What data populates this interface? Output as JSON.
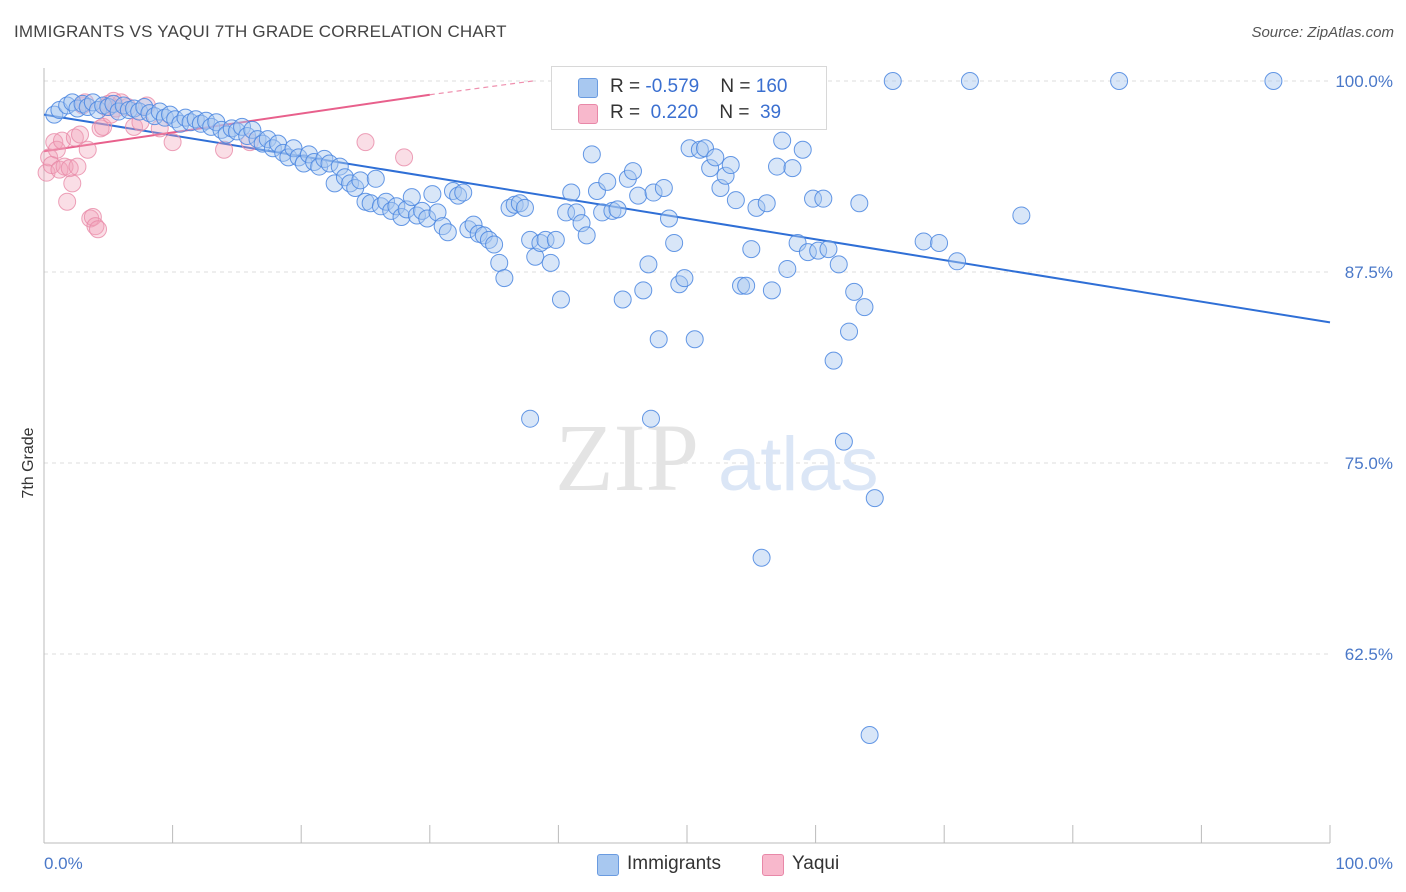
{
  "title": "IMMIGRANTS VS YAQUI 7TH GRADE CORRELATION CHART",
  "source": "Source: ZipAtlas.com",
  "watermark": {
    "zip": "ZIP",
    "atlas": "atlas"
  },
  "legend": {
    "rows": [
      {
        "r_label": "R = ",
        "r_value": "-0.579",
        "n_label": "N = ",
        "n_value": "160",
        "color": "#a8c8f0",
        "border": "#6a9be0"
      },
      {
        "r_label": "R = ",
        "r_value": " 0.220",
        "n_label": "N = ",
        "n_value": " 39",
        "color": "#f8b8cc",
        "border": "#e888a8"
      }
    ]
  },
  "bottom_legend": [
    {
      "label": "Immigrants",
      "color": "#a8c8f0",
      "border": "#6a9be0"
    },
    {
      "label": "Yaqui",
      "color": "#f8b8cc",
      "border": "#e888a8"
    }
  ],
  "chart_data": {
    "type": "scatter",
    "title": "IMMIGRANTS VS YAQUI 7TH GRADE CORRELATION CHART",
    "xlabel": "",
    "ylabel": "7th Grade",
    "xlim": [
      0,
      100
    ],
    "ylim": [
      50,
      100
    ],
    "x_tick_labels": [
      "0.0%",
      "100.0%"
    ],
    "y_ticks": [
      62.5,
      75.0,
      87.5,
      100.0
    ],
    "y_tick_labels": [
      "62.5%",
      "75.0%",
      "87.5%",
      "100.0%"
    ],
    "grid": "horizontal dashed",
    "legend_placement": "top-center",
    "colors": {
      "immigrants": "#4a86e0",
      "immigrants_line": "#2f6fd6",
      "yaqui": "#f0a0b8",
      "yaqui_line": "#e8608c"
    },
    "series": [
      {
        "name": "Immigrants",
        "r": -0.579,
        "n": 160,
        "trend": {
          "x": [
            0,
            100
          ],
          "y": [
            97.8,
            84.2
          ]
        },
        "points": [
          [
            0.8,
            97.8
          ],
          [
            1.2,
            98.1
          ],
          [
            1.8,
            98.4
          ],
          [
            2.2,
            98.6
          ],
          [
            2.6,
            98.2
          ],
          [
            3.0,
            98.5
          ],
          [
            3.4,
            98.3
          ],
          [
            3.8,
            98.6
          ],
          [
            4.2,
            98.1
          ],
          [
            4.6,
            98.4
          ],
          [
            5.0,
            98.3
          ],
          [
            5.4,
            98.5
          ],
          [
            5.8,
            98.0
          ],
          [
            6.2,
            98.4
          ],
          [
            6.6,
            98.1
          ],
          [
            7.0,
            98.2
          ],
          [
            7.4,
            98.0
          ],
          [
            7.8,
            98.3
          ],
          [
            8.2,
            97.9
          ],
          [
            8.6,
            97.7
          ],
          [
            9.0,
            98.0
          ],
          [
            9.4,
            97.6
          ],
          [
            9.8,
            97.8
          ],
          [
            10.2,
            97.5
          ],
          [
            10.6,
            97.2
          ],
          [
            11.0,
            97.6
          ],
          [
            11.4,
            97.3
          ],
          [
            11.8,
            97.5
          ],
          [
            12.2,
            97.2
          ],
          [
            12.6,
            97.4
          ],
          [
            13.0,
            97.0
          ],
          [
            13.4,
            97.3
          ],
          [
            13.8,
            96.8
          ],
          [
            14.2,
            96.5
          ],
          [
            14.6,
            96.9
          ],
          [
            15.0,
            96.7
          ],
          [
            15.4,
            97.0
          ],
          [
            15.8,
            96.4
          ],
          [
            16.2,
            96.8
          ],
          [
            16.6,
            96.2
          ],
          [
            17.0,
            95.9
          ],
          [
            17.4,
            96.2
          ],
          [
            17.8,
            95.6
          ],
          [
            18.2,
            95.9
          ],
          [
            18.6,
            95.3
          ],
          [
            19.0,
            95.0
          ],
          [
            19.4,
            95.6
          ],
          [
            19.8,
            95.0
          ],
          [
            20.2,
            94.6
          ],
          [
            20.6,
            95.2
          ],
          [
            21.0,
            94.7
          ],
          [
            21.4,
            94.4
          ],
          [
            21.8,
            94.9
          ],
          [
            22.2,
            94.6
          ],
          [
            22.6,
            93.3
          ],
          [
            23.0,
            94.4
          ],
          [
            23.4,
            93.7
          ],
          [
            23.8,
            93.3
          ],
          [
            24.2,
            93.0
          ],
          [
            24.6,
            93.5
          ],
          [
            25.0,
            92.1
          ],
          [
            25.4,
            92.0
          ],
          [
            25.8,
            93.6
          ],
          [
            26.2,
            91.8
          ],
          [
            26.6,
            92.1
          ],
          [
            27.0,
            91.5
          ],
          [
            27.4,
            91.8
          ],
          [
            27.8,
            91.1
          ],
          [
            28.2,
            91.6
          ],
          [
            28.6,
            92.4
          ],
          [
            29.0,
            91.2
          ],
          [
            29.4,
            91.5
          ],
          [
            29.8,
            91.0
          ],
          [
            30.2,
            92.6
          ],
          [
            30.6,
            91.4
          ],
          [
            31.0,
            90.5
          ],
          [
            31.4,
            90.1
          ],
          [
            31.8,
            92.8
          ],
          [
            32.2,
            92.5
          ],
          [
            32.6,
            92.7
          ],
          [
            33.0,
            90.3
          ],
          [
            33.4,
            90.6
          ],
          [
            33.8,
            90.0
          ],
          [
            34.2,
            89.9
          ],
          [
            34.6,
            89.6
          ],
          [
            35.0,
            89.3
          ],
          [
            35.4,
            88.1
          ],
          [
            35.8,
            87.1
          ],
          [
            36.2,
            91.7
          ],
          [
            36.6,
            91.9
          ],
          [
            37.0,
            92.0
          ],
          [
            37.4,
            91.7
          ],
          [
            37.8,
            89.6
          ],
          [
            38.2,
            88.5
          ],
          [
            38.6,
            89.4
          ],
          [
            39.0,
            89.6
          ],
          [
            39.4,
            88.1
          ],
          [
            39.8,
            89.6
          ],
          [
            40.2,
            85.7
          ],
          [
            40.6,
            91.4
          ],
          [
            41.0,
            92.7
          ],
          [
            41.4,
            91.4
          ],
          [
            41.8,
            90.7
          ],
          [
            42.2,
            89.9
          ],
          [
            42.6,
            95.2
          ],
          [
            43.0,
            92.8
          ],
          [
            43.4,
            91.4
          ],
          [
            43.8,
            93.4
          ],
          [
            44.2,
            91.5
          ],
          [
            44.6,
            91.6
          ],
          [
            45.0,
            85.7
          ],
          [
            45.4,
            93.6
          ],
          [
            45.8,
            94.1
          ],
          [
            46.2,
            92.5
          ],
          [
            46.6,
            86.3
          ],
          [
            47.0,
            88.0
          ],
          [
            47.4,
            92.7
          ],
          [
            47.8,
            83.1
          ],
          [
            48.2,
            93.0
          ],
          [
            48.6,
            91.0
          ],
          [
            49.0,
            89.4
          ],
          [
            49.4,
            86.7
          ],
          [
            49.8,
            87.1
          ],
          [
            50.2,
            95.6
          ],
          [
            50.6,
            83.1
          ],
          [
            51.0,
            95.5
          ],
          [
            51.4,
            95.6
          ],
          [
            51.8,
            94.3
          ],
          [
            52.2,
            95.0
          ],
          [
            52.6,
            93.0
          ],
          [
            53.0,
            93.8
          ],
          [
            53.4,
            94.5
          ],
          [
            53.8,
            92.2
          ],
          [
            54.2,
            86.6
          ],
          [
            54.6,
            86.6
          ],
          [
            55.0,
            89.0
          ],
          [
            55.4,
            91.7
          ],
          [
            55.8,
            68.8
          ],
          [
            56.2,
            92.0
          ],
          [
            56.6,
            86.3
          ],
          [
            57.0,
            94.4
          ],
          [
            57.4,
            96.1
          ],
          [
            57.8,
            87.7
          ],
          [
            58.2,
            94.3
          ],
          [
            58.6,
            89.4
          ],
          [
            59.0,
            95.5
          ],
          [
            59.4,
            88.8
          ],
          [
            59.8,
            92.3
          ],
          [
            60.2,
            88.9
          ],
          [
            60.6,
            92.3
          ],
          [
            61.0,
            89.0
          ],
          [
            61.4,
            81.7
          ],
          [
            61.8,
            88.0
          ],
          [
            62.2,
            76.4
          ],
          [
            62.6,
            83.6
          ],
          [
            63.0,
            86.2
          ],
          [
            63.4,
            92.0
          ],
          [
            63.8,
            85.2
          ],
          [
            64.2,
            57.2
          ],
          [
            64.6,
            72.7
          ],
          [
            66.0,
            100.0
          ],
          [
            72.0,
            100.0
          ],
          [
            83.6,
            100.0
          ],
          [
            95.6,
            100.0
          ],
          [
            37.8,
            77.9
          ],
          [
            47.2,
            77.9
          ],
          [
            68.4,
            89.5
          ],
          [
            69.6,
            89.4
          ],
          [
            71.0,
            88.2
          ],
          [
            76.0,
            91.2
          ]
        ]
      },
      {
        "name": "Yaqui",
        "r": 0.22,
        "n": 39,
        "trend": {
          "x": [
            0,
            30
          ],
          "y": [
            95.4,
            99.1
          ]
        },
        "trend_dashed": {
          "x": [
            30,
            38
          ],
          "y": [
            99.1,
            100.0
          ]
        },
        "points": [
          [
            0.2,
            94.0
          ],
          [
            0.4,
            95.0
          ],
          [
            0.6,
            94.5
          ],
          [
            0.8,
            96.0
          ],
          [
            1.0,
            95.5
          ],
          [
            1.2,
            94.2
          ],
          [
            1.4,
            96.1
          ],
          [
            1.6,
            94.4
          ],
          [
            1.8,
            92.1
          ],
          [
            2.0,
            94.3
          ],
          [
            2.2,
            93.3
          ],
          [
            2.4,
            96.3
          ],
          [
            2.6,
            94.4
          ],
          [
            2.8,
            96.5
          ],
          [
            3.0,
            98.4
          ],
          [
            3.2,
            98.6
          ],
          [
            3.4,
            95.5
          ],
          [
            3.6,
            91.0
          ],
          [
            3.8,
            91.1
          ],
          [
            4.0,
            90.5
          ],
          [
            4.2,
            90.3
          ],
          [
            4.4,
            96.9
          ],
          [
            4.6,
            97.0
          ],
          [
            4.8,
            98.3
          ],
          [
            5.0,
            98.5
          ],
          [
            5.2,
            97.8
          ],
          [
            5.4,
            98.7
          ],
          [
            5.6,
            98.2
          ],
          [
            6.0,
            98.6
          ],
          [
            6.5,
            98.3
          ],
          [
            7.0,
            97.0
          ],
          [
            7.5,
            97.3
          ],
          [
            8.0,
            98.4
          ],
          [
            9.0,
            96.9
          ],
          [
            10.0,
            96.0
          ],
          [
            14.0,
            95.5
          ],
          [
            16.0,
            96.0
          ],
          [
            25.0,
            96.0
          ],
          [
            28.0,
            95.0
          ]
        ]
      }
    ]
  }
}
